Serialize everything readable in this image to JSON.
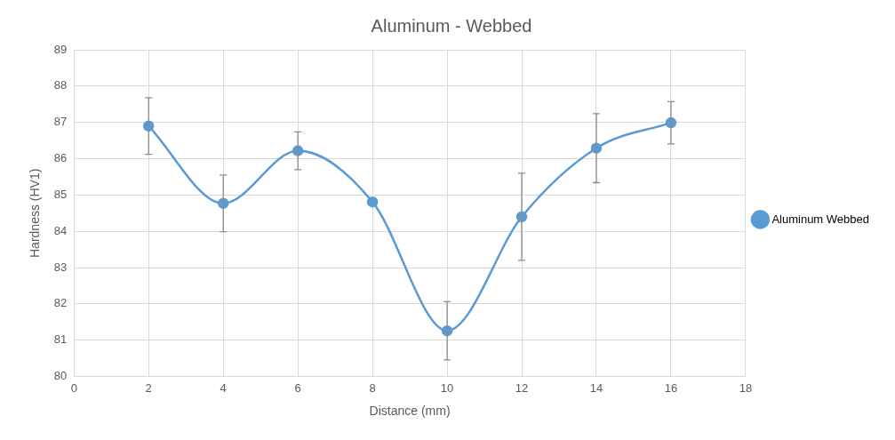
{
  "chart_data": {
    "type": "line",
    "title": "Aluminum - Webbed",
    "xlabel": "Distance (mm)",
    "ylabel": "Hardness (HV1)",
    "x": [
      2,
      4,
      6,
      8,
      10,
      12,
      14,
      16
    ],
    "series": [
      {
        "name": "Aluminum Webbed",
        "color": "#5b9bd5",
        "values": [
          86.9,
          84.77,
          86.22,
          84.81,
          81.26,
          84.4,
          86.29,
          86.99
        ],
        "errors": [
          0.78,
          0.78,
          0.52,
          null,
          0.8,
          1.2,
          0.95,
          0.58
        ]
      }
    ],
    "xlim": [
      0,
      18
    ],
    "xticks": [
      0,
      2,
      4,
      6,
      8,
      10,
      12,
      14,
      16,
      18
    ],
    "ylim": [
      80,
      89
    ],
    "yticks": [
      80,
      81,
      82,
      83,
      84,
      85,
      86,
      87,
      88,
      89
    ],
    "grid": true,
    "legend": "right",
    "marker": "circle",
    "line_style": "solid"
  }
}
